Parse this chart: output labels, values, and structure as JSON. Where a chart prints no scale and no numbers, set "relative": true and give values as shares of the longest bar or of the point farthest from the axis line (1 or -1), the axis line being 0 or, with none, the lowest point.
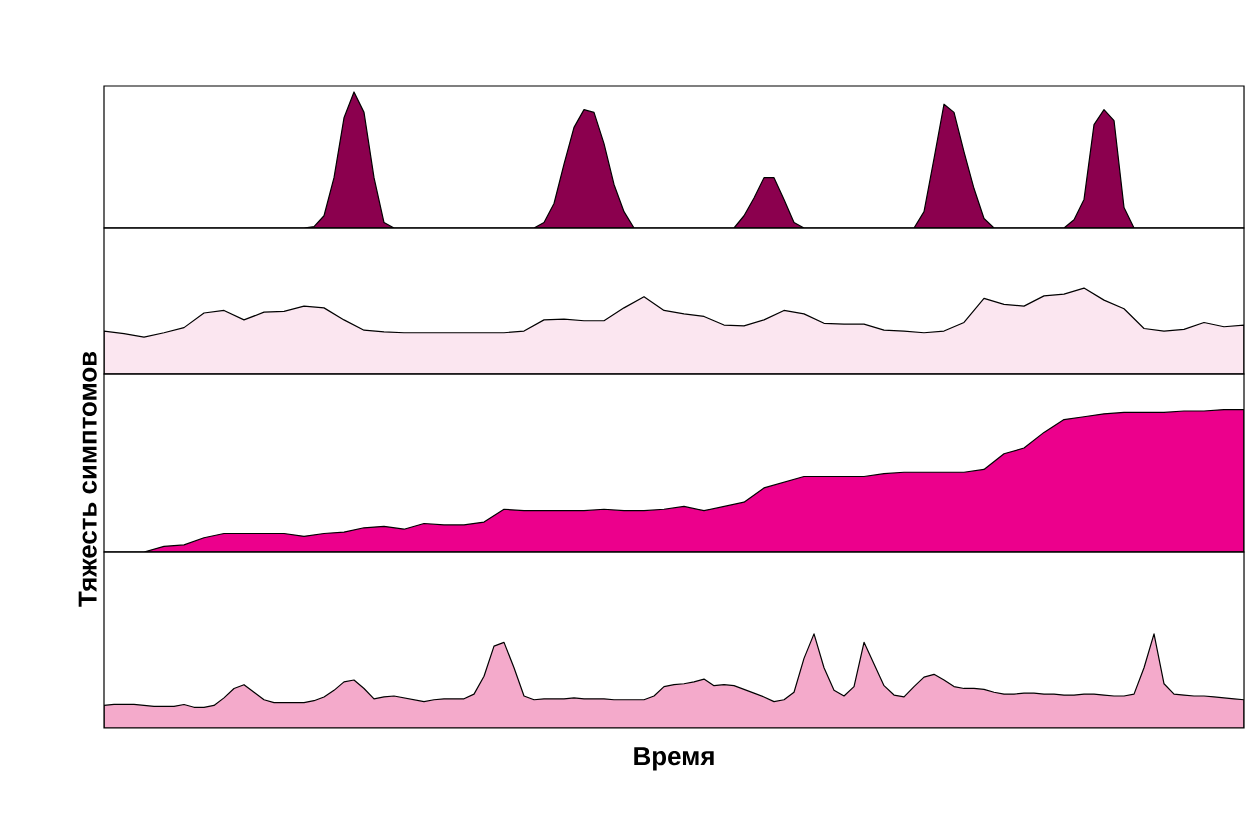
{
  "chart_data": [
    {
      "type": "area",
      "relative": true,
      "tick_labels": false,
      "color": "#8b004e",
      "categories": [
        null,
        null,
        null,
        null,
        null,
        null,
        null,
        null,
        null,
        null,
        null,
        null,
        null,
        null,
        null,
        null,
        null,
        null,
        null,
        null,
        null,
        null,
        null,
        null,
        null,
        null,
        null,
        null,
        null,
        null,
        null,
        null,
        null,
        null,
        null,
        null,
        null,
        null,
        null,
        null,
        null,
        null,
        null,
        null,
        null,
        null,
        null,
        null,
        null,
        null,
        null,
        null,
        null,
        null,
        null,
        null,
        null,
        null,
        null,
        null,
        null,
        null,
        null,
        null,
        null,
        null,
        null,
        null,
        null,
        null,
        null,
        null,
        null,
        null,
        null,
        null,
        null,
        null,
        null,
        null,
        null,
        null,
        null,
        null,
        null,
        null,
        null,
        null,
        null,
        null,
        null,
        null,
        null,
        null,
        null,
        null,
        null,
        null,
        null,
        null,
        null,
        null,
        null,
        null,
        null,
        null,
        null,
        null,
        null,
        null,
        null,
        null,
        null,
        null,
        null
      ],
      "values": [
        0,
        0,
        0,
        0,
        0,
        0,
        0,
        0,
        0,
        0,
        0,
        0,
        0,
        0,
        0,
        0,
        0,
        0,
        0,
        0,
        0,
        0.01,
        0.09,
        0.37,
        0.81,
        1,
        0.85,
        0.37,
        0.04,
        0,
        0,
        0,
        0,
        0,
        0,
        0,
        0,
        0,
        0,
        0,
        0,
        0,
        0,
        0,
        0.04,
        0.18,
        0.47,
        0.74,
        0.87,
        0.85,
        0.62,
        0.32,
        0.12,
        0,
        0,
        0,
        0,
        0,
        0,
        0,
        0,
        0,
        0,
        0,
        0.09,
        0.22,
        0.37,
        0.37,
        0.21,
        0.04,
        0,
        0,
        0,
        0,
        0,
        0,
        0,
        0,
        0,
        0,
        0,
        0,
        0.12,
        0.51,
        0.91,
        0.85,
        0.56,
        0.29,
        0.07,
        0,
        0,
        0,
        0,
        0,
        0,
        0,
        0,
        0.06,
        0.21,
        0.76,
        0.87,
        0.79,
        0.15,
        0,
        0,
        0,
        0,
        0,
        0,
        0,
        0,
        0,
        0,
        0,
        0
      ]
    },
    {
      "type": "area",
      "relative": true,
      "tick_labels": false,
      "color": "#fbe6f0",
      "categories": [
        null,
        null,
        null,
        null,
        null,
        null,
        null,
        null,
        null,
        null,
        null,
        null,
        null,
        null,
        null,
        null,
        null,
        null,
        null,
        null,
        null,
        null,
        null,
        null,
        null,
        null,
        null,
        null,
        null,
        null,
        null,
        null,
        null,
        null,
        null,
        null,
        null,
        null,
        null,
        null,
        null,
        null,
        null,
        null,
        null,
        null,
        null,
        null,
        null,
        null,
        null,
        null,
        null,
        null,
        null,
        null,
        null,
        null
      ],
      "values": [
        0.5,
        0.47,
        0.43,
        0.48,
        0.54,
        0.71,
        0.74,
        0.63,
        0.72,
        0.73,
        0.79,
        0.77,
        0.63,
        0.51,
        0.49,
        0.48,
        0.48,
        0.48,
        0.48,
        0.48,
        0.48,
        0.5,
        0.63,
        0.64,
        0.62,
        0.62,
        0.77,
        0.9,
        0.74,
        0.7,
        0.67,
        0.57,
        0.56,
        0.63,
        0.74,
        0.7,
        0.59,
        0.58,
        0.58,
        0.51,
        0.5,
        0.48,
        0.5,
        0.6,
        0.88,
        0.81,
        0.79,
        0.91,
        0.93,
        1,
        0.86,
        0.76,
        0.53,
        0.5,
        0.52,
        0.6,
        0.55,
        0.57
      ]
    },
    {
      "type": "area",
      "relative": true,
      "tick_labels": false,
      "color": "#ec008c",
      "ylabel": "Тяжесть симптомов",
      "categories": [
        null,
        null,
        null,
        null,
        null,
        null,
        null,
        null,
        null,
        null,
        null,
        null,
        null,
        null,
        null,
        null,
        null,
        null,
        null,
        null,
        null,
        null,
        null,
        null,
        null,
        null,
        null,
        null,
        null,
        null,
        null,
        null,
        null,
        null,
        null,
        null,
        null,
        null,
        null,
        null,
        null,
        null,
        null,
        null,
        null,
        null,
        null,
        null,
        null,
        null,
        null,
        null,
        null,
        null,
        null,
        null,
        null,
        null
      ],
      "values": [
        0,
        0,
        0,
        0.04,
        0.05,
        0.1,
        0.13,
        0.13,
        0.13,
        0.13,
        0.11,
        0.13,
        0.14,
        0.17,
        0.18,
        0.16,
        0.2,
        0.19,
        0.19,
        0.21,
        0.3,
        0.29,
        0.29,
        0.29,
        0.29,
        0.3,
        0.29,
        0.29,
        0.3,
        0.32,
        0.29,
        0.32,
        0.35,
        0.45,
        0.49,
        0.53,
        0.53,
        0.53,
        0.53,
        0.55,
        0.56,
        0.56,
        0.56,
        0.56,
        0.58,
        0.69,
        0.73,
        0.84,
        0.93,
        0.95,
        0.97,
        0.98,
        0.98,
        0.98,
        0.99,
        0.99,
        1,
        1
      ]
    },
    {
      "type": "area",
      "relative": true,
      "tick_labels": false,
      "color": "#f4aacb",
      "xlabel": "Время",
      "categories": [
        null,
        null,
        null,
        null,
        null,
        null,
        null,
        null,
        null,
        null,
        null,
        null,
        null,
        null,
        null,
        null,
        null,
        null,
        null,
        null,
        null,
        null,
        null,
        null,
        null,
        null,
        null,
        null,
        null,
        null,
        null,
        null,
        null,
        null,
        null,
        null,
        null,
        null,
        null,
        null,
        null,
        null,
        null,
        null,
        null,
        null,
        null,
        null,
        null,
        null,
        null,
        null,
        null,
        null,
        null,
        null,
        null,
        null,
        null,
        null,
        null,
        null,
        null,
        null,
        null,
        null,
        null,
        null,
        null,
        null,
        null,
        null,
        null,
        null,
        null,
        null,
        null,
        null,
        null,
        null,
        null,
        null,
        null,
        null,
        null,
        null,
        null,
        null,
        null,
        null,
        null,
        null,
        null,
        null,
        null,
        null,
        null,
        null,
        null,
        null,
        null,
        null,
        null,
        null,
        null,
        null,
        null,
        null,
        null,
        null,
        null,
        null,
        null,
        null,
        null
      ],
      "values": [
        0.24,
        0.25,
        0.25,
        0.25,
        0.24,
        0.23,
        0.23,
        0.23,
        0.25,
        0.22,
        0.22,
        0.24,
        0.32,
        0.42,
        0.46,
        0.38,
        0.3,
        0.27,
        0.27,
        0.27,
        0.27,
        0.29,
        0.33,
        0.4,
        0.49,
        0.51,
        0.42,
        0.31,
        0.33,
        0.34,
        0.32,
        0.3,
        0.28,
        0.3,
        0.31,
        0.31,
        0.31,
        0.36,
        0.55,
        0.87,
        0.91,
        0.64,
        0.34,
        0.3,
        0.31,
        0.31,
        0.31,
        0.32,
        0.31,
        0.31,
        0.31,
        0.3,
        0.3,
        0.3,
        0.3,
        0.34,
        0.44,
        0.46,
        0.47,
        0.49,
        0.52,
        0.45,
        0.46,
        0.45,
        0.41,
        0.37,
        0.33,
        0.28,
        0.3,
        0.38,
        0.74,
        1,
        0.64,
        0.4,
        0.34,
        0.44,
        0.91,
        0.68,
        0.45,
        0.35,
        0.33,
        0.44,
        0.54,
        0.57,
        0.51,
        0.44,
        0.42,
        0.42,
        0.41,
        0.38,
        0.36,
        0.36,
        0.37,
        0.37,
        0.36,
        0.36,
        0.35,
        0.35,
        0.36,
        0.36,
        0.35,
        0.34,
        0.34,
        0.36,
        0.64,
        1,
        0.47,
        0.36,
        0.35,
        0.34,
        0.34,
        0.33,
        0.32,
        0.31,
        0.3
      ]
    }
  ]
}
